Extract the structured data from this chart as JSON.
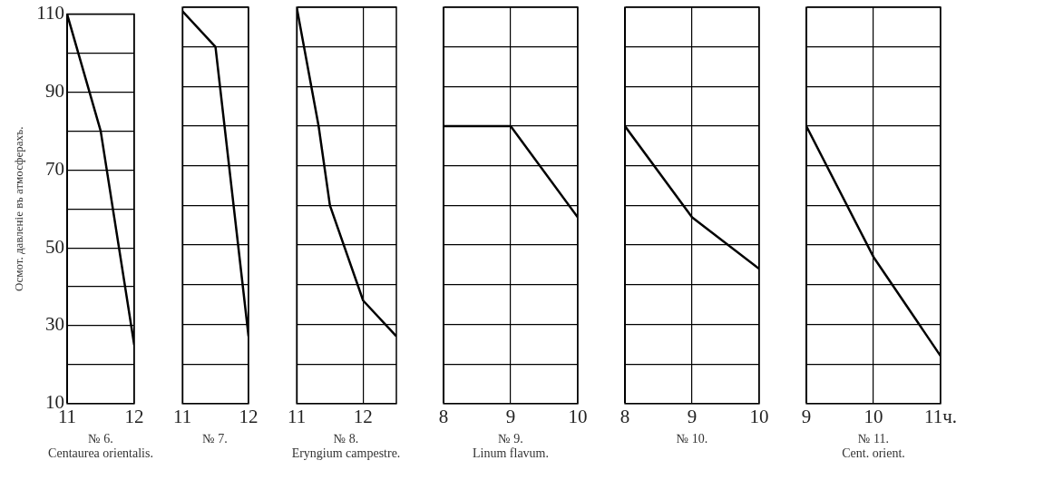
{
  "chart_data": [
    {
      "type": "line",
      "title": "№ 6.",
      "subtitle": "Centaurea orientalis.",
      "ylabel": "Осмот. давленіе въ атмосферахъ.",
      "x": [
        11,
        11.5,
        12
      ],
      "values": [
        110,
        80,
        25
      ],
      "color": "#000000",
      "xlim": [
        11,
        12
      ],
      "xticks": [
        11,
        12
      ],
      "ylim": [
        10,
        110
      ],
      "yticks": [
        10,
        {
          "value": 20,
          "label": null
        },
        30,
        {
          "value": 40,
          "label": null
        },
        50,
        {
          "value": 60,
          "label": null
        },
        70,
        {
          "value": 80,
          "label": null
        },
        90,
        {
          "value": 100,
          "label": null
        },
        110
      ],
      "grid": true
    },
    {
      "type": "line",
      "title": "№ 7.",
      "x": [
        11,
        11.5,
        12
      ],
      "values": [
        109,
        100,
        27
      ],
      "color": "#000000",
      "xlim": [
        11,
        12
      ],
      "xticks": [
        11,
        12
      ],
      "ylim": [
        10,
        110
      ],
      "yticks": [
        10,
        {
          "value": 20,
          "label": null
        },
        30,
        {
          "value": 40,
          "label": null
        },
        50,
        {
          "value": 60,
          "label": null
        },
        70,
        {
          "value": 80,
          "label": null
        },
        90,
        {
          "value": 100,
          "label": null
        },
        110
      ],
      "grid": true,
      "tick_labels": "x"
    },
    {
      "type": "line",
      "title": "№ 8.",
      "subtitle": "Eryngium campestre.",
      "x": [
        11,
        11.33,
        11.5,
        12,
        12.5
      ],
      "values": [
        110,
        80,
        60,
        36,
        27
      ],
      "color": "#000000",
      "xlim": [
        11,
        12.5
      ],
      "xticks": [
        11,
        12
      ],
      "ylim": [
        10,
        110
      ],
      "yticks": [
        10,
        {
          "value": 20,
          "label": null
        },
        30,
        {
          "value": 40,
          "label": null
        },
        50,
        {
          "value": 60,
          "label": null
        },
        70,
        {
          "value": 80,
          "label": null
        },
        90,
        {
          "value": 100,
          "label": null
        },
        110
      ],
      "grid": true,
      "tick_labels": "x"
    },
    {
      "type": "line",
      "title": "№ 9.",
      "subtitle": "Linum flavum.",
      "x": [
        8,
        9,
        10
      ],
      "values": [
        80,
        80,
        57
      ],
      "color": "#000000",
      "xlim": [
        8,
        10
      ],
      "xticks": [
        8,
        9,
        10
      ],
      "ylim": [
        10,
        110
      ],
      "yticks": [
        10,
        {
          "value": 20,
          "label": null
        },
        30,
        {
          "value": 40,
          "label": null
        },
        50,
        {
          "value": 60,
          "label": null
        },
        70,
        {
          "value": 80,
          "label": null
        },
        90,
        {
          "value": 100,
          "label": null
        },
        110
      ],
      "grid": true,
      "tick_labels": "x"
    },
    {
      "type": "line",
      "title": "№ 10.",
      "x": [
        8,
        9,
        10
      ],
      "values": [
        80,
        57,
        44
      ],
      "color": "#000000",
      "xlim": [
        8,
        10
      ],
      "xticks": [
        8,
        9,
        10
      ],
      "ylim": [
        10,
        110
      ],
      "yticks": [
        10,
        {
          "value": 20,
          "label": null
        },
        30,
        {
          "value": 40,
          "label": null
        },
        50,
        {
          "value": 60,
          "label": null
        },
        70,
        {
          "value": 80,
          "label": null
        },
        90,
        {
          "value": 100,
          "label": null
        },
        110
      ],
      "grid": true,
      "tick_labels": "x"
    },
    {
      "type": "line",
      "title": "№ 11.",
      "subtitle": "Cent. orient.",
      "x": [
        9,
        10,
        11
      ],
      "values": [
        80,
        47,
        22
      ],
      "color": "#000000",
      "xlim": [
        9,
        11
      ],
      "xticks": [
        9,
        10,
        {
          "value": 11,
          "label": "11ч."
        }
      ],
      "ylim": [
        10,
        110
      ],
      "yticks": [
        10,
        {
          "value": 20,
          "label": null
        },
        30,
        {
          "value": 40,
          "label": null
        },
        50,
        {
          "value": 60,
          "label": null
        },
        70,
        {
          "value": 80,
          "label": null
        },
        90,
        {
          "value": 100,
          "label": null
        },
        110
      ],
      "grid": true,
      "tick_labels": "x"
    }
  ]
}
